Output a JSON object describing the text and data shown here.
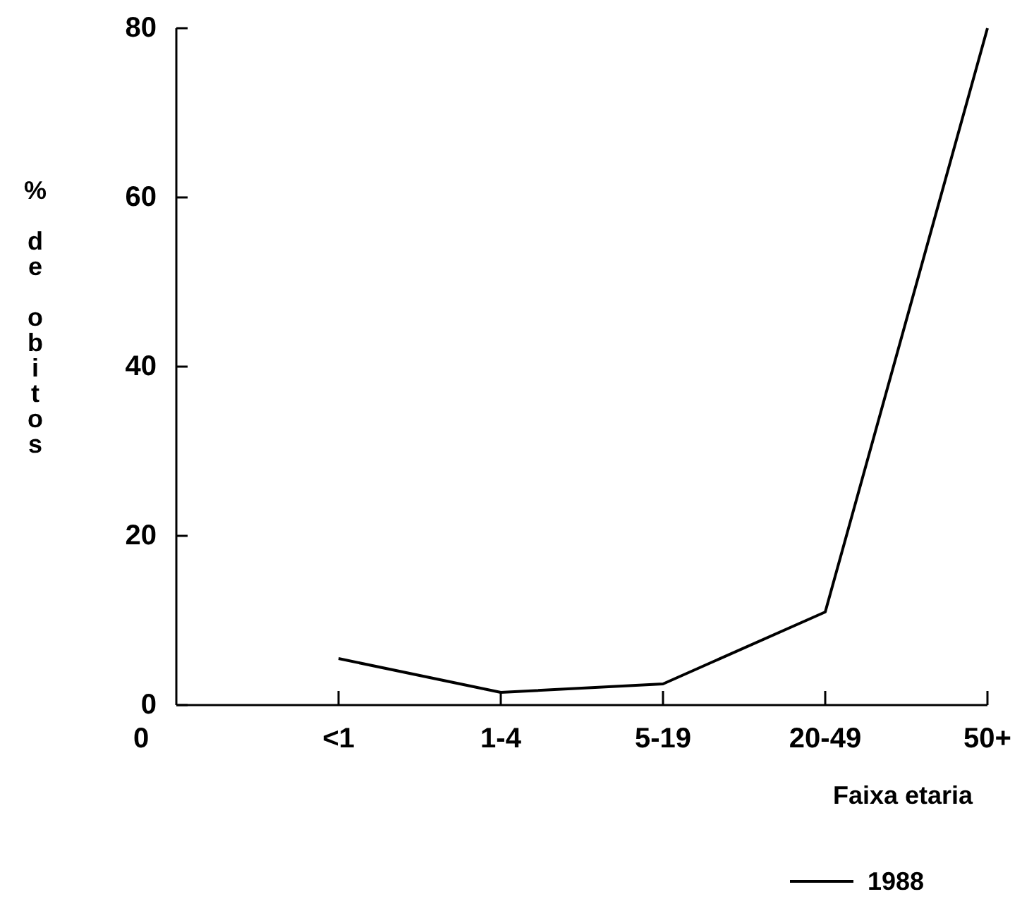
{
  "chart_data": {
    "type": "line",
    "xlabel": "Faixa etaria",
    "ylabel": "% de obitos",
    "categories": [
      "0",
      "<1",
      "1-4",
      "5-19",
      "20-49",
      "50+"
    ],
    "series": [
      {
        "name": "1988",
        "color": "#000000",
        "values": [
          null,
          5.5,
          1.5,
          2.5,
          11,
          80
        ]
      }
    ],
    "ylim": [
      0,
      80
    ],
    "yticks": [
      0,
      20,
      40,
      60,
      80
    ],
    "legend": "bottom right",
    "marker": "none",
    "line_style": "solid"
  }
}
